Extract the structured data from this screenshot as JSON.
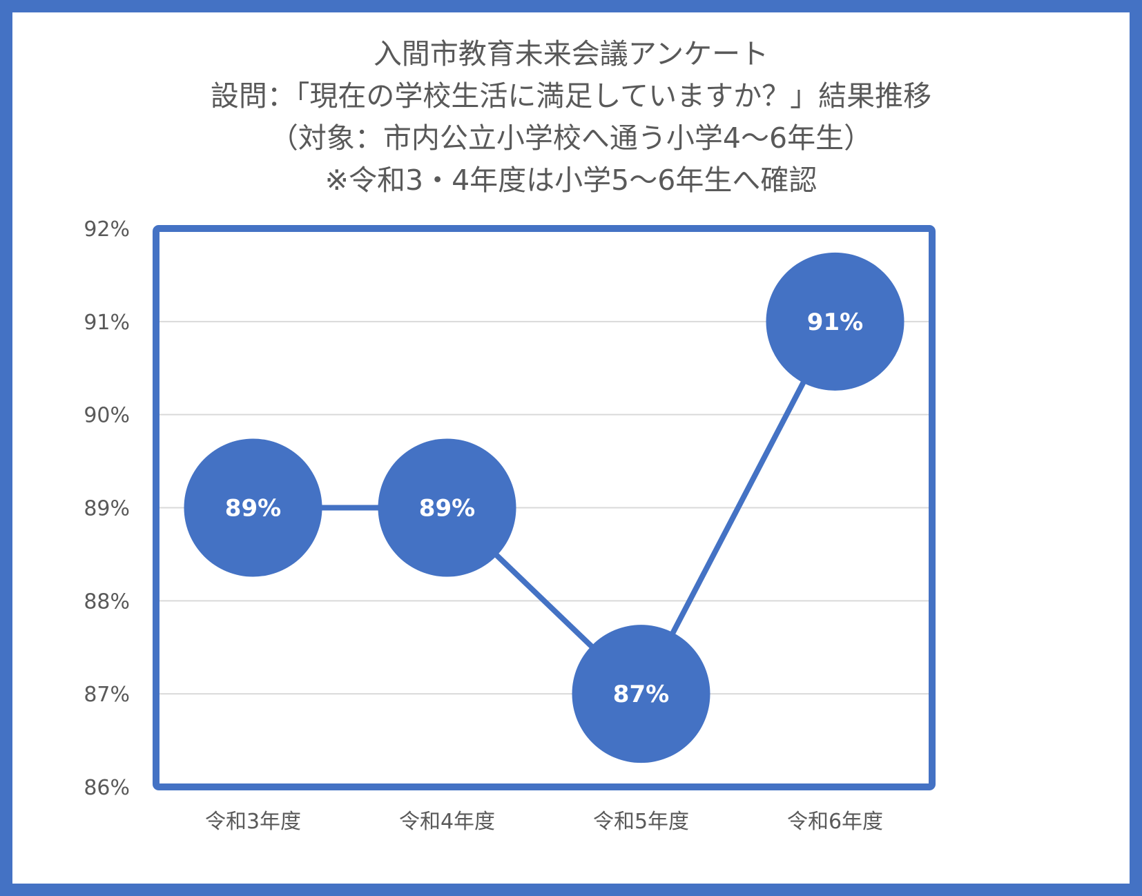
{
  "chart_data": {
    "type": "line",
    "title_lines": [
      "入間市教育未来会議アンケート",
      "設問：「現在の学校生活に満足していますか？」結果推移",
      "（対象：市内公立小学校へ通う小学4～6年生）",
      "※令和3・4年度は小学5～6年生へ確認"
    ],
    "categories": [
      "令和3年度",
      "令和4年度",
      "令和5年度",
      "令和6年度"
    ],
    "series": [
      {
        "values": [
          89,
          89,
          87,
          91
        ],
        "data_labels": [
          "89%",
          "89%",
          "87%",
          "91%"
        ]
      }
    ],
    "ylim": [
      86,
      92
    ],
    "y_ticks": [
      86,
      87,
      88,
      89,
      90,
      91,
      92
    ],
    "y_tick_labels": [
      "86%",
      "87%",
      "88%",
      "89%",
      "90%",
      "91%",
      "92%"
    ],
    "grid": true,
    "legend": "none",
    "colors": {
      "accent": "#4472C4",
      "grid": "#D9D9D9",
      "text": "#595959"
    }
  }
}
